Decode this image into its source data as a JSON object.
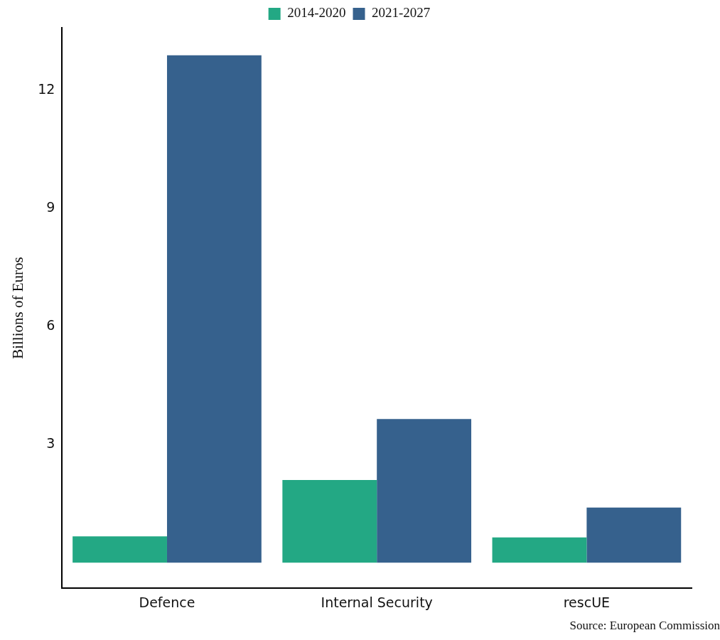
{
  "chart_data": {
    "type": "bar",
    "ylabel": "Billions of Euros",
    "categories": [
      "Defence",
      "Internal Security",
      "rescUE"
    ],
    "series": [
      {
        "name": "2014-2020",
        "color": "#23a884",
        "values": [
          0.67,
          2.1,
          0.64
        ]
      },
      {
        "name": "2021-2027",
        "color": "#36618d",
        "values": [
          12.9,
          3.65,
          1.4
        ]
      }
    ],
    "ylim": [
      -0.65,
      13.6
    ],
    "yticks": [
      3,
      6,
      9,
      12
    ],
    "grid": false,
    "legend": "top",
    "annotations": [
      "Source: European Commission"
    ]
  }
}
